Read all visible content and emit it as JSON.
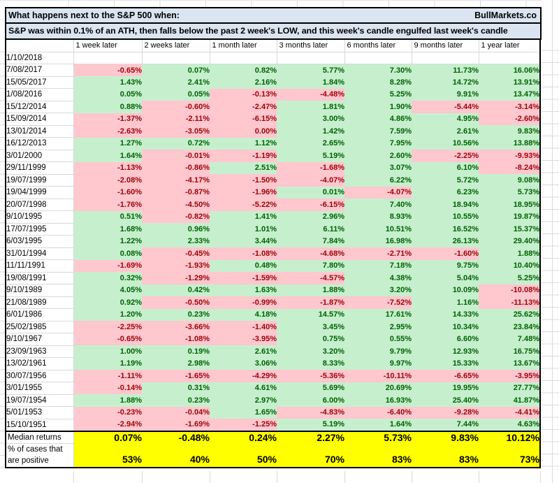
{
  "title": {
    "left": "What happens next to the S&P 500 when:",
    "right": "BullMarkets.co",
    "subtitle": "S&P was within 0.1% of an ATH, then falls below the past 2 week's LOW, and this week's candle engulfed last week's candle"
  },
  "columns": [
    "1 week later",
    "2 weeks later",
    "1 month later",
    "3 months later",
    "6 months later",
    "9 months later",
    "1 year later"
  ],
  "rows": [
    {
      "date": "1/10/2018",
      "values": [
        "",
        "",
        "",
        "",
        "",
        "",
        ""
      ]
    },
    {
      "date": "7/08/2017",
      "values": [
        "-0.65%",
        "0.07%",
        "0.82%",
        "5.77%",
        "7.30%",
        "11.73%",
        "16.06%"
      ]
    },
    {
      "date": "15/05/2017",
      "values": [
        "1.43%",
        "2.41%",
        "2.16%",
        "1.84%",
        "8.28%",
        "14.72%",
        "13.91%"
      ]
    },
    {
      "date": "1/08/2016",
      "values": [
        "0.05%",
        "0.05%",
        "-0.13%",
        "-4.48%",
        "5.25%",
        "9.91%",
        "13.47%"
      ]
    },
    {
      "date": "15/12/2014",
      "values": [
        "0.88%",
        "-0.60%",
        "-2.47%",
        "1.81%",
        "1.90%",
        "-5.44%",
        "-3.14%"
      ]
    },
    {
      "date": "15/09/2014",
      "values": [
        "-1.37%",
        "-2.11%",
        "-6.15%",
        "3.00%",
        "4.86%",
        "4.95%",
        "-2.60%"
      ]
    },
    {
      "date": "13/01/2014",
      "values": [
        "-2.63%",
        "-3.05%",
        "0.00%",
        "1.42%",
        "7.59%",
        "2.61%",
        "9.83%"
      ]
    },
    {
      "date": "16/12/2013",
      "values": [
        "1.27%",
        "0.72%",
        "1.12%",
        "2.65%",
        "7.95%",
        "10.56%",
        "13.88%"
      ]
    },
    {
      "date": "3/01/2000",
      "values": [
        "1.64%",
        "-0.01%",
        "-1.19%",
        "5.19%",
        "2.60%",
        "-2.25%",
        "-9.93%"
      ]
    },
    {
      "date": "29/11/1999",
      "values": [
        "-1.13%",
        "-0.86%",
        "2.51%",
        "-1.68%",
        "3.07%",
        "6.10%",
        "-8.24%"
      ]
    },
    {
      "date": "19/07/1999",
      "values": [
        "-2.08%",
        "-4.17%",
        "-1.50%",
        "-4.07%",
        "6.22%",
        "5.72%",
        "9.08%"
      ]
    },
    {
      "date": "19/04/1999",
      "values": [
        "-1.60%",
        "-0.87%",
        "-1.96%",
        "0.01%",
        "-4.07%",
        "6.23%",
        "5.73%"
      ]
    },
    {
      "date": "20/07/1998",
      "values": [
        "-1.76%",
        "-4.50%",
        "-5.22%",
        "-6.15%",
        "7.40%",
        "18.94%",
        "18.95%"
      ]
    },
    {
      "date": "9/10/1995",
      "values": [
        "0.51%",
        "-0.82%",
        "1.41%",
        "2.96%",
        "8.93%",
        "10.55%",
        "19.87%"
      ]
    },
    {
      "date": "17/07/1995",
      "values": [
        "1.68%",
        "0.96%",
        "1.01%",
        "6.11%",
        "10.51%",
        "16.52%",
        "15.37%"
      ]
    },
    {
      "date": "6/03/1995",
      "values": [
        "1.22%",
        "2.33%",
        "3.44%",
        "7.84%",
        "16.98%",
        "26.13%",
        "29.40%"
      ]
    },
    {
      "date": "31/01/1994",
      "values": [
        "0.08%",
        "-0.45%",
        "-1.08%",
        "-4.68%",
        "-2.71%",
        "-1.60%",
        "1.88%"
      ]
    },
    {
      "date": "11/11/1991",
      "values": [
        "-1.69%",
        "-1.93%",
        "0.48%",
        "7.80%",
        "7.18%",
        "9.75%",
        "10.40%"
      ]
    },
    {
      "date": "19/08/1991",
      "values": [
        "0.32%",
        "-1.29%",
        "-1.59%",
        "-4.57%",
        "4.38%",
        "5.04%",
        "5.25%"
      ]
    },
    {
      "date": "9/10/1989",
      "values": [
        "4.05%",
        "0.42%",
        "1.63%",
        "1.88%",
        "3.20%",
        "10.09%",
        "-10.08%"
      ]
    },
    {
      "date": "21/08/1989",
      "values": [
        "0.92%",
        "-0.50%",
        "-0.99%",
        "-1.87%",
        "-7.52%",
        "1.16%",
        "-11.13%"
      ]
    },
    {
      "date": "6/01/1986",
      "values": [
        "1.20%",
        "0.23%",
        "4.18%",
        "14.57%",
        "17.61%",
        "14.33%",
        "25.62%"
      ]
    },
    {
      "date": "25/02/1985",
      "values": [
        "-2.25%",
        "-3.66%",
        "-1.40%",
        "3.45%",
        "2.95%",
        "10.34%",
        "23.84%"
      ]
    },
    {
      "date": "9/10/1967",
      "values": [
        "-0.65%",
        "-1.08%",
        "-3.95%",
        "0.75%",
        "0.55%",
        "6.60%",
        "7.48%"
      ]
    },
    {
      "date": "23/09/1963",
      "values": [
        "1.00%",
        "0.19%",
        "2.61%",
        "3.20%",
        "9.79%",
        "12.93%",
        "16.75%"
      ]
    },
    {
      "date": "13/02/1961",
      "values": [
        "1.19%",
        "2.98%",
        "3.06%",
        "8.33%",
        "9.97%",
        "15.33%",
        "13.67%"
      ]
    },
    {
      "date": "30/07/1956",
      "values": [
        "-1.11%",
        "-1.65%",
        "-4.29%",
        "-5.36%",
        "-10.11%",
        "-6.65%",
        "-3.95%"
      ]
    },
    {
      "date": "3/01/1955",
      "values": [
        "-0.14%",
        "0.31%",
        "4.61%",
        "5.69%",
        "20.69%",
        "19.95%",
        "27.77%"
      ]
    },
    {
      "date": "19/07/1954",
      "values": [
        "1.88%",
        "0.23%",
        "2.97%",
        "6.00%",
        "16.93%",
        "25.40%",
        "41.87%"
      ]
    },
    {
      "date": "5/01/1953",
      "values": [
        "-0.23%",
        "-0.04%",
        "1.65%",
        "-4.83%",
        "-6.40%",
        "-9.28%",
        "-4.41%"
      ]
    },
    {
      "date": "15/10/1951",
      "values": [
        "-2.94%",
        "-1.69%",
        "-1.25%",
        "5.19%",
        "1.64%",
        "7.44%",
        "4.63%"
      ]
    }
  ],
  "summary": {
    "median": {
      "label": "Median returns",
      "values": [
        "0.07%",
        "-0.48%",
        "0.24%",
        "2.27%",
        "5.73%",
        "9.83%",
        "10.12%"
      ]
    },
    "pct_positive": {
      "label": "% of cases that\nare positive",
      "values": [
        "53%",
        "40%",
        "50%",
        "70%",
        "83%",
        "83%",
        "73%"
      ]
    }
  },
  "colors": {
    "positive_bg": "#C6EFCE",
    "positive_text": "#006100",
    "negative_bg": "#FFC7CE",
    "negative_text": "#9C0006",
    "highlight_bg": "#FFFF00",
    "title_bg": "#DBE5F1"
  }
}
